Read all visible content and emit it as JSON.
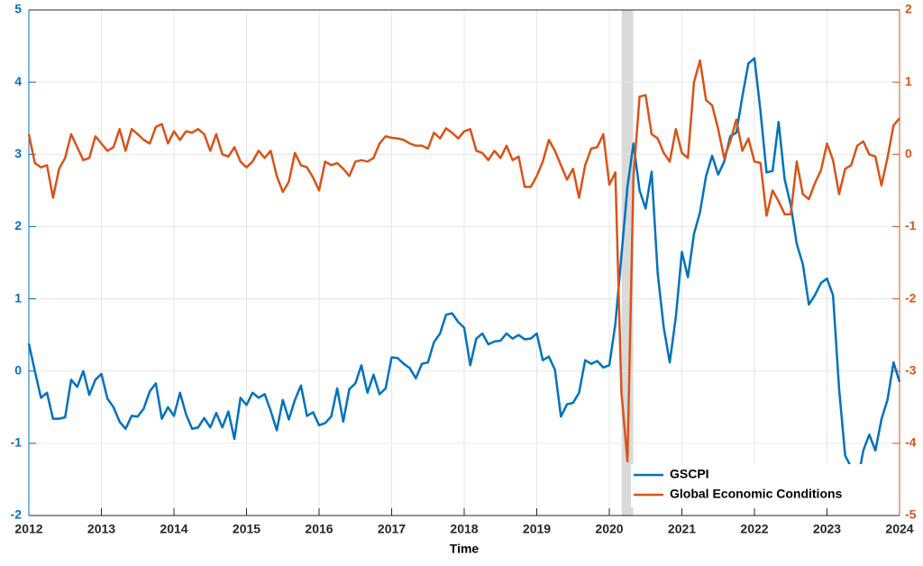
{
  "chart_data": {
    "type": "line",
    "x_label": "Time",
    "x": [
      2012.0,
      2012.083,
      2012.167,
      2012.25,
      2012.333,
      2012.417,
      2012.5,
      2012.583,
      2012.667,
      2012.75,
      2012.833,
      2012.917,
      2013.0,
      2013.083,
      2013.167,
      2013.25,
      2013.333,
      2013.417,
      2013.5,
      2013.583,
      2013.667,
      2013.75,
      2013.833,
      2013.917,
      2014.0,
      2014.083,
      2014.167,
      2014.25,
      2014.333,
      2014.417,
      2014.5,
      2014.583,
      2014.667,
      2014.75,
      2014.833,
      2014.917,
      2015.0,
      2015.083,
      2015.167,
      2015.25,
      2015.333,
      2015.417,
      2015.5,
      2015.583,
      2015.667,
      2015.75,
      2015.833,
      2015.917,
      2016.0,
      2016.083,
      2016.167,
      2016.25,
      2016.333,
      2016.417,
      2016.5,
      2016.583,
      2016.667,
      2016.75,
      2016.833,
      2016.917,
      2017.0,
      2017.083,
      2017.167,
      2017.25,
      2017.333,
      2017.417,
      2017.5,
      2017.583,
      2017.667,
      2017.75,
      2017.833,
      2017.917,
      2018.0,
      2018.083,
      2018.167,
      2018.25,
      2018.333,
      2018.417,
      2018.5,
      2018.583,
      2018.667,
      2018.75,
      2018.833,
      2018.917,
      2019.0,
      2019.083,
      2019.167,
      2019.25,
      2019.333,
      2019.417,
      2019.5,
      2019.583,
      2019.667,
      2019.75,
      2019.833,
      2019.917,
      2020.0,
      2020.083,
      2020.167,
      2020.25,
      2020.333,
      2020.417,
      2020.5,
      2020.583,
      2020.667,
      2020.75,
      2020.833,
      2020.917,
      2021.0,
      2021.083,
      2021.167,
      2021.25,
      2021.333,
      2021.417,
      2021.5,
      2021.583,
      2021.667,
      2021.75,
      2021.833,
      2021.917,
      2022.0,
      2022.083,
      2022.167,
      2022.25,
      2022.333,
      2022.417,
      2022.5,
      2022.583,
      2022.667,
      2022.75,
      2022.833,
      2022.917,
      2023.0,
      2023.083,
      2023.167,
      2023.25,
      2023.333,
      2023.417,
      2023.5,
      2023.583,
      2023.667,
      2023.75,
      2023.833,
      2023.917,
      2024.0
    ],
    "series": [
      {
        "name": "GSCPI",
        "color": "#0072bd",
        "values": [
          0.38,
          0.0,
          -0.37,
          -0.3,
          -0.66,
          -0.66,
          -0.64,
          -0.12,
          -0.22,
          0.0,
          -0.33,
          -0.12,
          -0.04,
          -0.38,
          -0.5,
          -0.7,
          -0.8,
          -0.62,
          -0.63,
          -0.52,
          -0.28,
          -0.17,
          -0.66,
          -0.5,
          -0.62,
          -0.3,
          -0.6,
          -0.8,
          -0.78,
          -0.65,
          -0.78,
          -0.58,
          -0.78,
          -0.56,
          -0.94,
          -0.37,
          -0.47,
          -0.3,
          -0.37,
          -0.32,
          -0.55,
          -0.82,
          -0.4,
          -0.67,
          -0.4,
          -0.2,
          -0.62,
          -0.57,
          -0.75,
          -0.72,
          -0.63,
          -0.24,
          -0.7,
          -0.25,
          -0.17,
          0.08,
          -0.3,
          -0.05,
          -0.32,
          -0.24,
          0.19,
          0.18,
          0.1,
          0.04,
          -0.1,
          0.1,
          0.12,
          0.4,
          0.52,
          0.78,
          0.8,
          0.68,
          0.6,
          0.08,
          0.45,
          0.52,
          0.37,
          0.41,
          0.42,
          0.52,
          0.45,
          0.5,
          0.44,
          0.45,
          0.52,
          0.15,
          0.2,
          0.02,
          -0.63,
          -0.46,
          -0.44,
          -0.3,
          0.15,
          0.1,
          0.14,
          0.05,
          0.08,
          0.65,
          1.6,
          2.55,
          3.15,
          2.5,
          2.25,
          2.76,
          1.35,
          0.6,
          0.12,
          0.75,
          1.65,
          1.3,
          1.9,
          2.2,
          2.7,
          2.98,
          2.72,
          2.9,
          3.25,
          3.3,
          3.8,
          4.26,
          4.33,
          3.6,
          2.75,
          2.77,
          3.45,
          2.65,
          2.3,
          1.76,
          1.48,
          0.92,
          1.05,
          1.22,
          1.28,
          1.05,
          -0.25,
          -1.17,
          -1.33,
          -1.55,
          -1.1,
          -0.88,
          -1.1,
          -0.67,
          -0.4,
          0.12,
          -0.15
        ]
      },
      {
        "name": "Global Economic Conditions",
        "color": "#d95319",
        "axis": "y2",
        "values": [
          0.28,
          -0.12,
          -0.18,
          -0.15,
          -0.6,
          -0.2,
          -0.05,
          0.28,
          0.1,
          -0.08,
          -0.05,
          0.25,
          0.15,
          0.05,
          0.1,
          0.35,
          0.05,
          0.35,
          0.28,
          0.2,
          0.15,
          0.38,
          0.42,
          0.15,
          0.32,
          0.2,
          0.32,
          0.3,
          0.35,
          0.28,
          0.05,
          0.28,
          0.0,
          -0.03,
          0.1,
          -0.1,
          -0.18,
          -0.1,
          0.05,
          -0.05,
          0.05,
          -0.3,
          -0.52,
          -0.38,
          0.02,
          -0.15,
          -0.18,
          -0.32,
          -0.5,
          -0.1,
          -0.15,
          -0.12,
          -0.2,
          -0.3,
          -0.1,
          -0.08,
          -0.1,
          -0.05,
          0.15,
          0.25,
          0.23,
          0.22,
          0.2,
          0.15,
          0.12,
          0.12,
          0.08,
          0.3,
          0.22,
          0.36,
          0.3,
          0.22,
          0.32,
          0.35,
          0.05,
          0.02,
          -0.08,
          0.05,
          -0.05,
          0.12,
          -0.08,
          -0.03,
          -0.45,
          -0.45,
          -0.3,
          -0.1,
          0.2,
          0.05,
          -0.15,
          -0.35,
          -0.2,
          -0.6,
          -0.15,
          0.08,
          0.1,
          0.28,
          -0.42,
          -0.25,
          -3.3,
          -4.25,
          -0.3,
          0.8,
          0.82,
          0.28,
          0.22,
          0.02,
          -0.1,
          0.35,
          0.02,
          -0.05,
          1.0,
          1.3,
          0.75,
          0.68,
          0.35,
          -0.05,
          0.18,
          0.48,
          0.05,
          0.22,
          -0.1,
          -0.12,
          -0.85,
          -0.5,
          -0.65,
          -0.83,
          -0.83,
          -0.1,
          -0.55,
          -0.62,
          -0.4,
          -0.22,
          0.15,
          -0.08,
          -0.55,
          -0.2,
          -0.15,
          0.12,
          0.18,
          0.0,
          -0.03,
          -0.43,
          -0.05,
          0.4,
          0.5
        ]
      }
    ],
    "shaded_span": [
      2020.17,
      2020.33
    ],
    "shade_color": "#d9d9d9",
    "xlim": [
      2012,
      2024
    ],
    "xticks": [
      2012,
      2013,
      2014,
      2015,
      2016,
      2017,
      2018,
      2019,
      2020,
      2021,
      2022,
      2023,
      2024
    ],
    "ylim": [
      -2,
      5
    ],
    "yticks": [
      -2,
      -1,
      0,
      1,
      2,
      3,
      4,
      5
    ],
    "y2lim": [
      -5,
      2
    ],
    "y2ticks": [
      -5,
      -4,
      -3,
      -2,
      -1,
      0,
      1,
      2
    ],
    "grid": true,
    "legend": "lower right"
  }
}
